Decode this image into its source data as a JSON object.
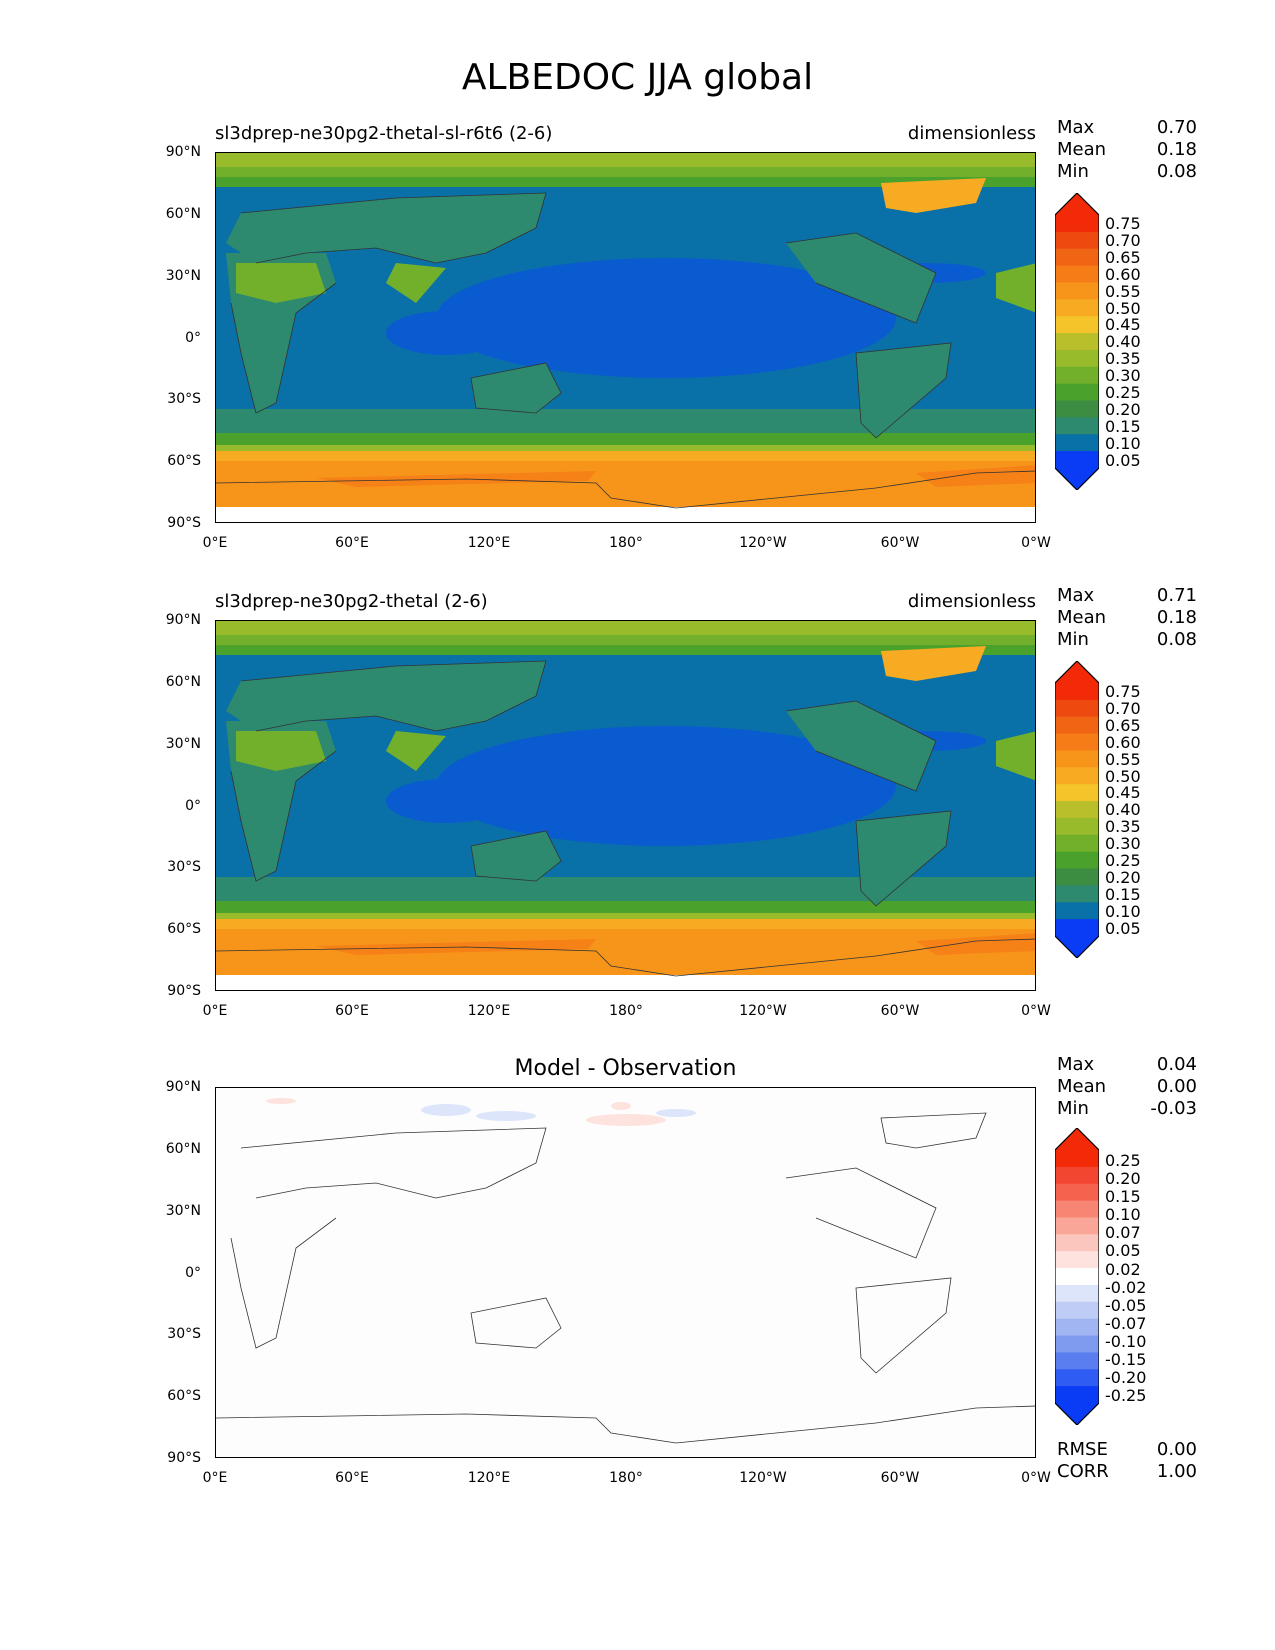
{
  "title": "ALBEDOC JJA global",
  "axes": {
    "y_ticks": [
      "90°N",
      "60°N",
      "30°N",
      "0°",
      "30°S",
      "60°S",
      "90°S"
    ],
    "x_ticks": [
      "0°E",
      "60°E",
      "120°E",
      "180°",
      "120°W",
      "60°W",
      "0°W"
    ]
  },
  "panels": [
    {
      "title_left": "sl3dprep-ne30pg2-thetal-sl-r6t6 (2-6)",
      "title_right": "dimensionless",
      "stats": {
        "max_label": "Max",
        "max_value": "0.70",
        "mean_label": "Mean",
        "mean_value": "0.18",
        "min_label": "Min",
        "min_value": "0.08"
      },
      "colorbar_levels": [
        "0.75",
        "0.70",
        "0.65",
        "0.60",
        "0.55",
        "0.50",
        "0.45",
        "0.40",
        "0.35",
        "0.30",
        "0.25",
        "0.20",
        "0.15",
        "0.10",
        "0.05"
      ]
    },
    {
      "title_left": "sl3dprep-ne30pg2-thetal (2-6)",
      "title_right": "dimensionless",
      "stats": {
        "max_label": "Max",
        "max_value": "0.71",
        "mean_label": "Mean",
        "mean_value": "0.18",
        "min_label": "Min",
        "min_value": "0.08"
      },
      "colorbar_levels": [
        "0.75",
        "0.70",
        "0.65",
        "0.60",
        "0.55",
        "0.50",
        "0.45",
        "0.40",
        "0.35",
        "0.30",
        "0.25",
        "0.20",
        "0.15",
        "0.10",
        "0.05"
      ]
    },
    {
      "title_center": "Model - Observation",
      "stats": {
        "max_label": "Max",
        "max_value": "0.04",
        "mean_label": "Mean",
        "mean_value": "0.00",
        "min_label": "Min",
        "min_value": "-0.03"
      },
      "colorbar_levels": [
        "0.25",
        "0.20",
        "0.15",
        "0.10",
        "0.07",
        "0.05",
        "0.02",
        "-0.02",
        "-0.05",
        "-0.07",
        "-0.10",
        "-0.15",
        "-0.20",
        "-0.25"
      ],
      "metrics": {
        "rmse_label": "RMSE",
        "rmse_value": "0.00",
        "corr_label": "CORR",
        "corr_value": "1.00"
      }
    }
  ],
  "colors": {
    "seq": [
      "#0b3cf5",
      "#0a70a8",
      "#2d8a6e",
      "#3c8c42",
      "#4aa12c",
      "#72b02c",
      "#98bb2c",
      "#b8bf2a",
      "#f5c42a",
      "#f7ab23",
      "#f7951b",
      "#f57c17",
      "#f06513",
      "#ee4a10",
      "#f32a08"
    ],
    "div": [
      "#0b3cf5",
      "#2f5cf3",
      "#5a7df0",
      "#7e9bf0",
      "#a0b5f2",
      "#bfcdf6",
      "#dde5fb",
      "#ffffff",
      "#fde2de",
      "#fbc6bd",
      "#f9a698",
      "#f78573",
      "#f5634f",
      "#f34630",
      "#f32a08"
    ]
  }
}
